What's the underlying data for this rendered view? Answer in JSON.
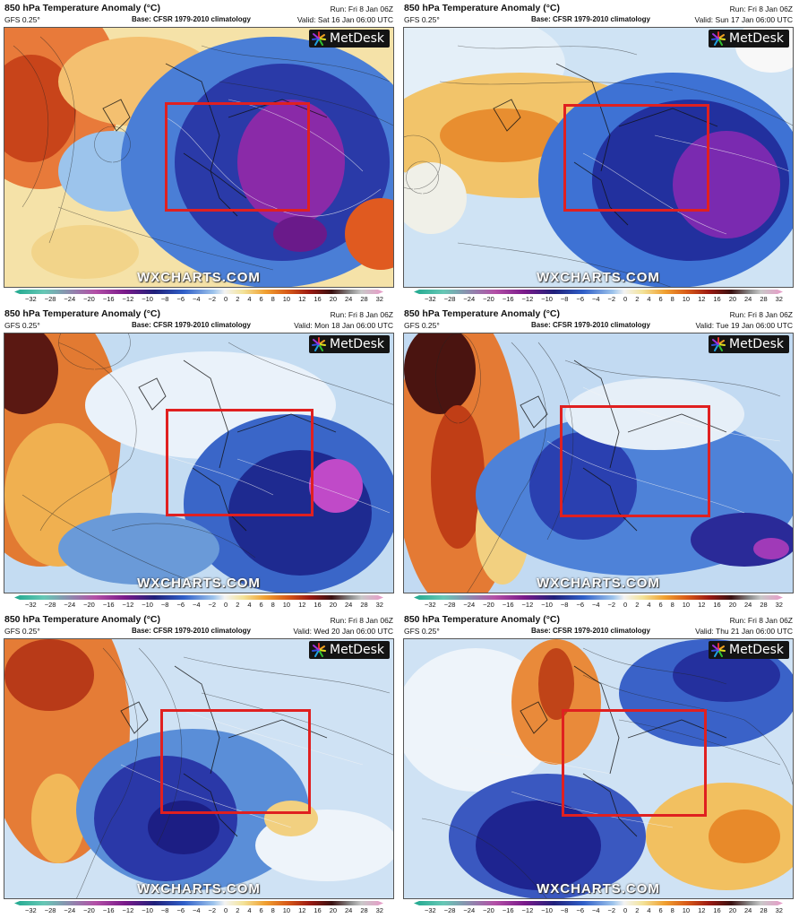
{
  "panels": [
    {
      "title": "850 hPa Temperature Anomaly (°C)",
      "model": "GFS 0.25°",
      "base": "Base: CFSR 1979-2010 climatology",
      "run": "Run: Fri 8 Jan 06Z",
      "valid": "Valid: Sat 16 Jan 06:00 UTC"
    },
    {
      "title": "850 hPa Temperature Anomaly (°C)",
      "model": "GFS 0.25°",
      "base": "Base: CFSR 1979-2010 climatology",
      "run": "Run: Fri 8 Jan 06Z",
      "valid": "Valid: Sun 17 Jan 06:00 UTC"
    },
    {
      "title": "850 hPa Temperature Anomaly (°C)",
      "model": "GFS 0.25°",
      "base": "Base: CFSR 1979-2010 climatology",
      "run": "Run: Fri 8 Jan 06Z",
      "valid": "Valid: Mon 18 Jan 06:00 UTC"
    },
    {
      "title": "850 hPa Temperature Anomaly (°C)",
      "model": "GFS 0.25°",
      "base": "Base: CFSR 1979-2010 climatology",
      "run": "Run: Fri 8 Jan 06Z",
      "valid": "Valid: Tue 19 Jan 06:00 UTC"
    },
    {
      "title": "850 hPa Temperature Anomaly (°C)",
      "model": "GFS 0.25°",
      "base": "Base: CFSR 1979-2010 climatology",
      "run": "Run: Fri 8 Jan 06Z",
      "valid": "Valid: Wed 20 Jan 06:00 UTC"
    },
    {
      "title": "850 hPa Temperature Anomaly (°C)",
      "model": "GFS 0.25°",
      "base": "Base: CFSR 1979-2010 climatology",
      "run": "Run: Fri 8 Jan 06Z",
      "valid": "Valid: Thu 21 Jan 06:00 UTC"
    }
  ],
  "logo_text": "MetDesk",
  "watermark": "WXCHARTS.COM",
  "colorbar_ticks": [
    "−32",
    "−28",
    "−24",
    "−20",
    "−16",
    "−12",
    "−10",
    "−8",
    "−6",
    "−4",
    "−2",
    "0",
    "2",
    "4",
    "6",
    "8",
    "10",
    "12",
    "16",
    "20",
    "24",
    "28",
    "32"
  ],
  "highlight_color": "#e02020"
}
